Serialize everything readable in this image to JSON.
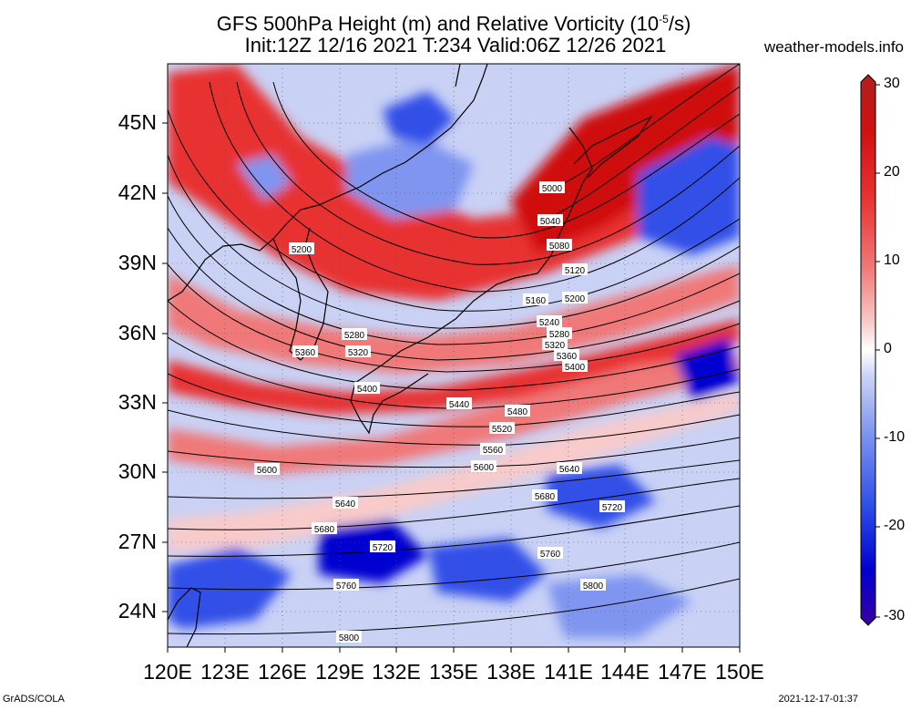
{
  "header": {
    "title_line1": "GFS 500hPa Height (m) and Relative Vorticity (10",
    "title_sup": "-5",
    "title_tail": "/s)",
    "title_line2": "Init:12Z 12/16 2021 T:234 Valid:06Z 12/26 2021",
    "site": "weather-models.info"
  },
  "axes": {
    "lat_labels": [
      "45N",
      "42N",
      "39N",
      "36N",
      "33N",
      "30N",
      "27N",
      "24N"
    ],
    "lon_labels": [
      "120E",
      "123E",
      "126E",
      "129E",
      "132E",
      "135E",
      "138E",
      "141E",
      "144E",
      "147E",
      "150E"
    ]
  },
  "colorbar": {
    "ticks": [
      "30",
      "20",
      "10",
      "0",
      "-10",
      "-20",
      "-30"
    ],
    "colors_low_to_high": [
      "#3a00a0",
      "#0000d0",
      "#3050e8",
      "#7f95f0",
      "#c9d1f5",
      "#ffffff",
      "#f8caca",
      "#f07878",
      "#e83030",
      "#d01010",
      "#b02020"
    ]
  },
  "contours": {
    "labels": [
      "5000",
      "5040",
      "5080",
      "5120",
      "5160",
      "5200",
      "5240",
      "5280",
      "5320",
      "5360",
      "5400",
      "5440",
      "5480",
      "5520",
      "5560",
      "5600",
      "5640",
      "5680",
      "5720",
      "5760",
      "5800"
    ],
    "extra_labels": [
      "5200",
      "5280",
      "5320",
      "5360",
      "5400",
      "5600",
      "5640",
      "5680",
      "5720",
      "5760",
      "5800"
    ]
  },
  "footer": {
    "left": "GrADS/COLA",
    "right": "2021-12-17-01:37"
  }
}
